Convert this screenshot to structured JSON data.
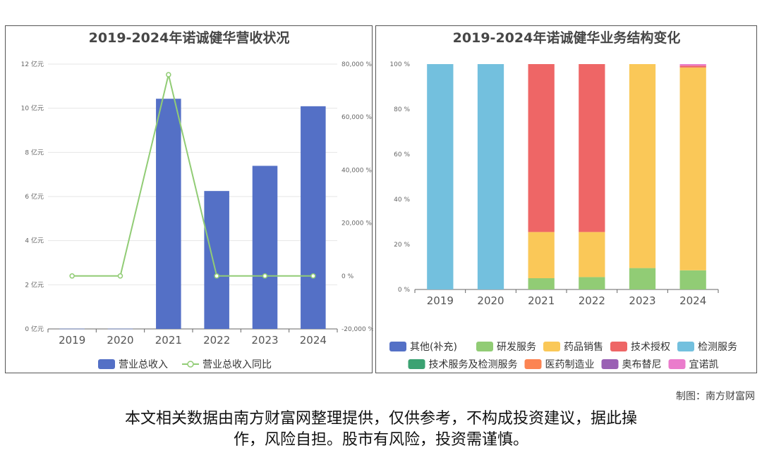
{
  "chart_data": [
    {
      "type": "bar",
      "title": "2019-2024年诺诚健华营收状况",
      "categories": [
        "2019",
        "2020",
        "2021",
        "2022",
        "2023",
        "2024"
      ],
      "series": [
        {
          "name": "营业总收入",
          "type": "bar",
          "axis": "left",
          "values": [
            0.01,
            0.01,
            10.43,
            6.25,
            7.39,
            10.09
          ],
          "color": "#5470c6"
        },
        {
          "name": "营业总收入同比",
          "type": "line",
          "axis": "right",
          "values": [
            0,
            0,
            76000,
            0,
            0,
            0
          ],
          "color": "#91cc75"
        }
      ],
      "ylim_left": [
        0,
        12
      ],
      "ylim_right": [
        -20000,
        80000
      ],
      "yticks_left": [
        "0 亿元",
        "2 亿元",
        "4 亿元",
        "6 亿元",
        "8 亿元",
        "10 亿元",
        "12 亿元"
      ],
      "yticks_right": [
        "-20,000 %",
        "0 %",
        "20,000 %",
        "40,000 %",
        "60,000 %",
        "80,000 %"
      ],
      "grid": true,
      "legend": "bottom"
    },
    {
      "type": "bar",
      "stacked": true,
      "title": "2019-2024年诺诚健华业务结构变化",
      "categories": [
        "2019",
        "2020",
        "2021",
        "2022",
        "2023",
        "2024"
      ],
      "ylim": [
        0,
        100
      ],
      "yticks": [
        "0 %",
        "20 %",
        "40 %",
        "60 %",
        "80 %",
        "100 %"
      ],
      "series": [
        {
          "name": "其他(补充)",
          "color": "#5470c6",
          "values": [
            0,
            0,
            0,
            0,
            0,
            0
          ]
        },
        {
          "name": "研发服务",
          "color": "#91cc75",
          "values": [
            0,
            0,
            5,
            5.5,
            9.5,
            8.5
          ]
        },
        {
          "name": "药品销售",
          "color": "#fac858",
          "values": [
            0,
            0,
            20.5,
            20,
            90.5,
            90
          ]
        },
        {
          "name": "技术授权",
          "color": "#ee6666",
          "values": [
            0,
            0,
            74.5,
            74.5,
            0,
            0.8
          ]
        },
        {
          "name": "检测服务",
          "color": "#73c0de",
          "values": [
            100,
            100,
            0,
            0,
            0,
            0
          ]
        },
        {
          "name": "技术服务及检测服务",
          "color": "#3ba272",
          "values": [
            0,
            0,
            0,
            0,
            0,
            0
          ]
        },
        {
          "name": "医药制造业",
          "color": "#fc8452",
          "values": [
            0,
            0,
            0,
            0,
            0,
            0
          ]
        },
        {
          "name": "奥布替尼",
          "color": "#9a60b4",
          "values": [
            0,
            0,
            0,
            0,
            0,
            0
          ]
        },
        {
          "name": "宜诺凯",
          "color": "#ea7ccc",
          "values": [
            0,
            0,
            0,
            0,
            0,
            0.7
          ]
        }
      ],
      "legend": "bottom"
    }
  ],
  "credit": "制图：南方财富网",
  "disclaimer": [
    "本文相关数据由南方财富网整理提供，仅供参考，不构成投资建议，据此操",
    "作，风险自担。股市有风险，投资需谨慎。"
  ]
}
